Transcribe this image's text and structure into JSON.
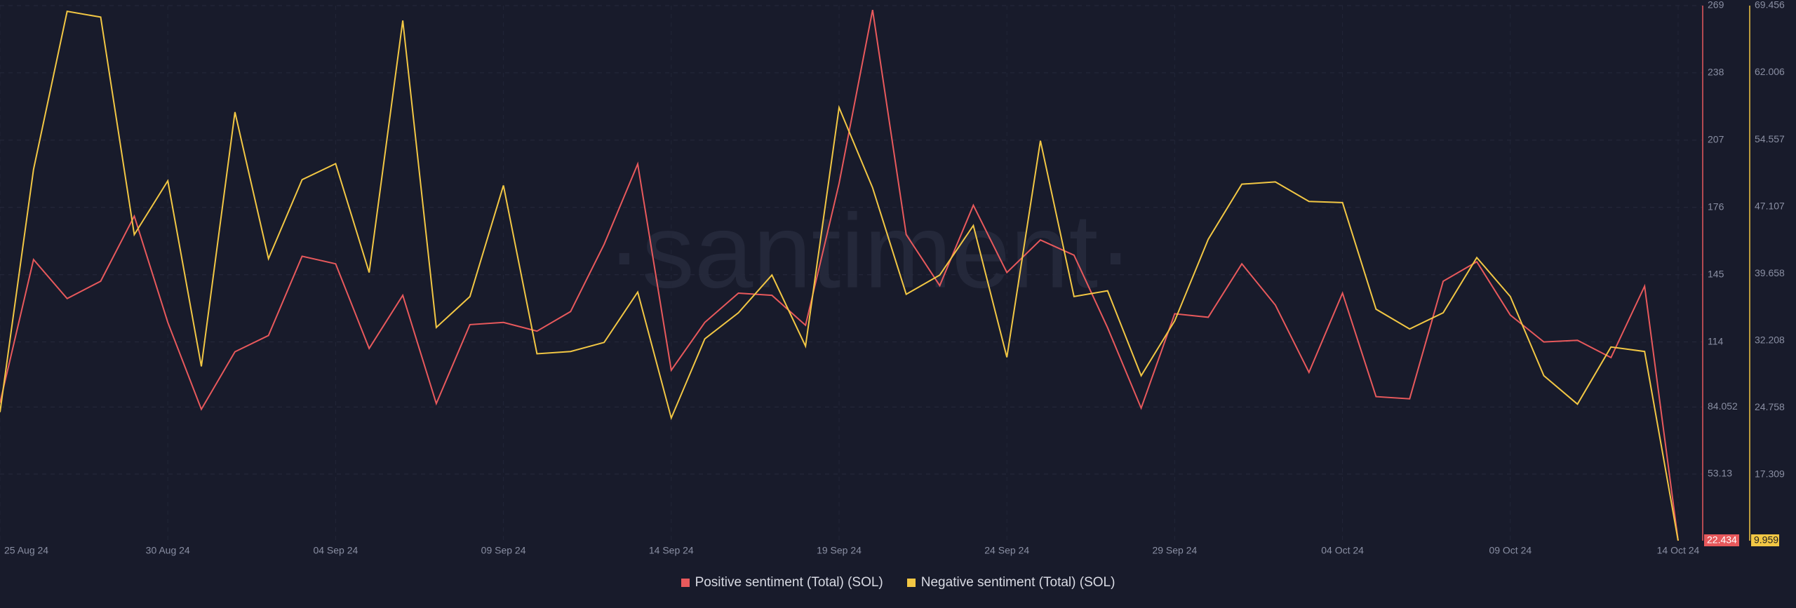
{
  "chart_data": {
    "type": "line",
    "watermark": "·santiment·",
    "categories": [
      "25 Aug 24",
      null,
      null,
      null,
      null,
      "30 Aug 24",
      null,
      null,
      null,
      null,
      "04 Sep 24",
      null,
      null,
      null,
      null,
      "09 Sep 24",
      null,
      null,
      null,
      null,
      "14 Sep 24",
      null,
      null,
      null,
      null,
      "19 Sep 24",
      null,
      null,
      null,
      null,
      "24 Sep 24",
      null,
      null,
      null,
      null,
      "29 Sep 24",
      null,
      null,
      null,
      null,
      "04 Oct 24",
      null,
      null,
      null,
      null,
      "09 Oct 24",
      null,
      null,
      null,
      null,
      "14 Oct 24"
    ],
    "series": [
      {
        "name": "Positive sentiment (Total) (SOL)",
        "color": "#e8595c",
        "axis": "y",
        "values": [
          86,
          152,
          134,
          142,
          172,
          123,
          83,
          109.5,
          117,
          153.5,
          150,
          111,
          135.5,
          85.6,
          122,
          123,
          119,
          128,
          159,
          196,
          101,
          123,
          136.5,
          135.5,
          121.7,
          187,
          267,
          163.5,
          140,
          177,
          146,
          161,
          154,
          120.6,
          83.5,
          127,
          125.4,
          150,
          131,
          100,
          136.5,
          88.8,
          87.8,
          142,
          151,
          126.4,
          114,
          114.8,
          106.8,
          139.7,
          22.434
        ]
      },
      {
        "name": "Negative sentiment (Total) (SOL)",
        "color": "#f2c744",
        "axis": "y2",
        "values": [
          24.25,
          51.24,
          68.82,
          68.18,
          43.99,
          49.97,
          29.34,
          57.61,
          41.31,
          50.1,
          51.88,
          39.78,
          67.8,
          33.67,
          37.1,
          49.46,
          30.74,
          31,
          32,
          37.6,
          23.6,
          32.4,
          35.3,
          39.5,
          31.6,
          58.12,
          49.2,
          37.36,
          39.5,
          45,
          30.35,
          54.43,
          37.1,
          37.75,
          28.3,
          34.4,
          43.47,
          49.6,
          49.85,
          47.68,
          47.55,
          35.7,
          33.5,
          35.3,
          41.44,
          37.1,
          28.3,
          25.14,
          31.5,
          31,
          9.959
        ]
      }
    ],
    "ylim": [
      22.434,
      269
    ],
    "yticks": [
      53.13,
      84.052,
      114,
      145,
      176,
      207,
      238,
      269
    ],
    "y2lim": [
      9.959,
      69.456
    ],
    "y2ticks": [
      17.309,
      24.758,
      32.208,
      39.658,
      47.107,
      54.557,
      62.006,
      69.456
    ],
    "grid": true
  }
}
